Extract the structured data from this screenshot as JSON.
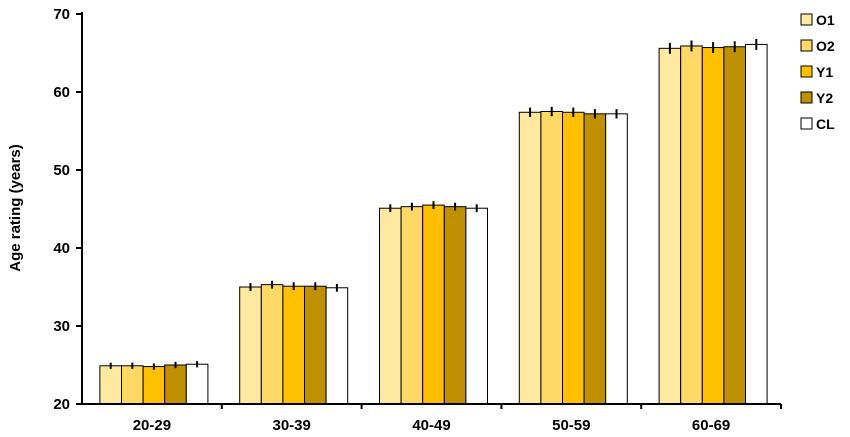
{
  "chart_data": {
    "type": "bar",
    "title": "",
    "xlabel": "",
    "ylabel": "Age rating (years)",
    "ylim": [
      20,
      70
    ],
    "yticks": [
      20,
      30,
      40,
      50,
      60,
      70
    ],
    "grid": false,
    "legend_position": "top-right",
    "categories": [
      "20-29",
      "30-39",
      "40-49",
      "50-59",
      "60-69"
    ],
    "series": [
      {
        "name": "O1",
        "color": "#FFE8A0",
        "values": [
          24.9,
          35.0,
          45.1,
          57.4,
          65.6
        ],
        "errors": [
          0.4,
          0.5,
          0.5,
          0.6,
          0.7
        ]
      },
      {
        "name": "O2",
        "color": "#FFD966",
        "values": [
          24.9,
          35.3,
          45.3,
          57.5,
          65.9
        ],
        "errors": [
          0.4,
          0.5,
          0.5,
          0.6,
          0.7
        ]
      },
      {
        "name": "Y1",
        "color": "#FFC000",
        "values": [
          24.8,
          35.1,
          45.5,
          57.4,
          65.7
        ],
        "errors": [
          0.4,
          0.5,
          0.5,
          0.6,
          0.7
        ]
      },
      {
        "name": "Y2",
        "color": "#BF9000",
        "values": [
          25.0,
          35.1,
          45.3,
          57.2,
          65.8
        ],
        "errors": [
          0.4,
          0.5,
          0.5,
          0.6,
          0.7
        ]
      },
      {
        "name": "CL",
        "color": "#FFFFFF",
        "values": [
          25.1,
          34.9,
          45.1,
          57.2,
          66.1
        ],
        "errors": [
          0.4,
          0.5,
          0.5,
          0.6,
          0.7
        ]
      }
    ]
  }
}
